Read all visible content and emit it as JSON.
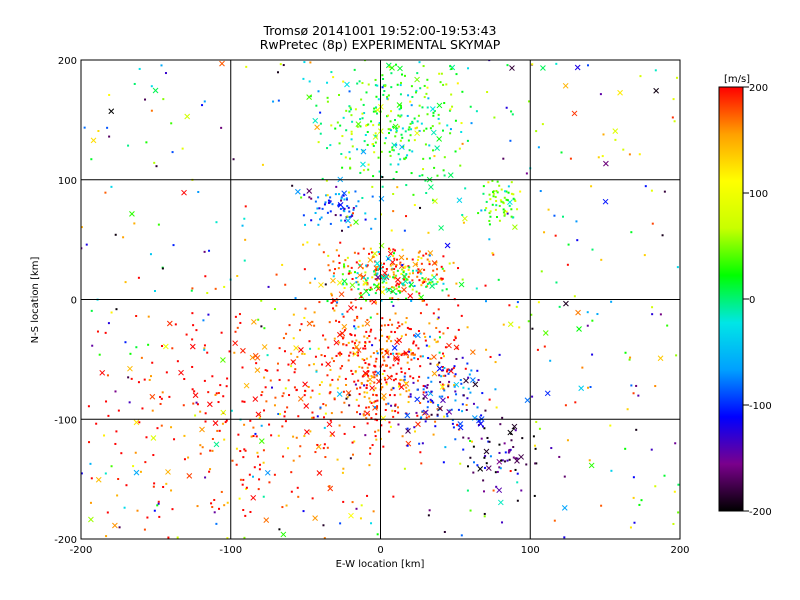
{
  "chart_data": {
    "type": "scatter",
    "title": "Tromsø 20141001 19:52:00-19:53:43",
    "subtitle": "RwPretec (8p) EXPERIMENTAL SKYMAP",
    "xlabel": "E-W location [km]",
    "ylabel": "N-S location [km]",
    "xlim": [
      -200,
      200
    ],
    "ylim": [
      -200,
      200
    ],
    "xticks": [
      -200,
      -100,
      0,
      100,
      200
    ],
    "yticks": [
      -200,
      -100,
      0,
      100,
      200
    ],
    "grid": true,
    "colorbar": {
      "label": "[m/s]",
      "range": [
        -200,
        200
      ],
      "ticks": [
        200,
        100,
        0,
        -100,
        -200
      ],
      "colors": [
        "#000000",
        "#7a008c",
        "#0000ff",
        "#00a0ff",
        "#00e6e6",
        "#00ff00",
        "#c8ff00",
        "#ffff00",
        "#ffa000",
        "#ff0000"
      ],
      "placement": "right"
    },
    "markers": [
      "dot (velocity estimate)",
      "x (velocity estimate)"
    ],
    "clusters": [
      {
        "x": 10,
        "y": 150,
        "spread": [
          25,
          30
        ],
        "velocity": 20,
        "count": 300
      },
      {
        "x": -30,
        "y": 75,
        "spread": [
          12,
          8
        ],
        "velocity": -90,
        "count": 70
      },
      {
        "x": 80,
        "y": 80,
        "spread": [
          8,
          8
        ],
        "velocity": 40,
        "count": 60
      },
      {
        "x": 5,
        "y": 25,
        "spread": [
          20,
          10
        ],
        "velocity": 170,
        "count": 160
      },
      {
        "x": 10,
        "y": 15,
        "spread": [
          20,
          8
        ],
        "velocity": 10,
        "count": 110
      },
      {
        "x": -5,
        "y": -50,
        "spread": [
          30,
          30
        ],
        "velocity": 185,
        "count": 480
      },
      {
        "x": 40,
        "y": -80,
        "spread": [
          20,
          20
        ],
        "velocity": -110,
        "count": 130
      },
      {
        "x": -100,
        "y": -100,
        "spread": [
          55,
          50
        ],
        "velocity": 195,
        "count": 300
      },
      {
        "x": 80,
        "y": -130,
        "spread": [
          15,
          15
        ],
        "velocity": -170,
        "count": 70
      },
      {
        "x": 0,
        "y": 0,
        "spread": [
          120,
          120
        ],
        "velocity": 0,
        "count": 450
      }
    ]
  }
}
